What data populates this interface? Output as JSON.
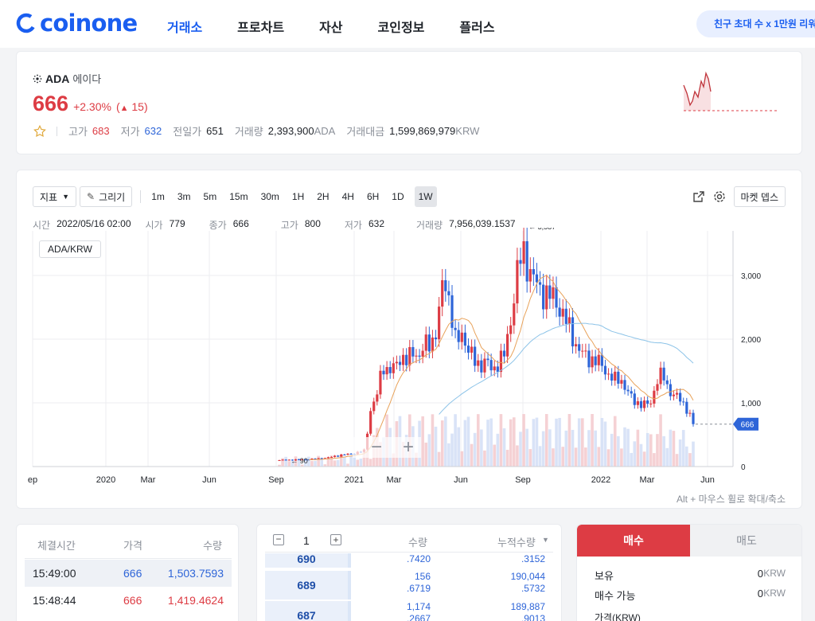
{
  "header": {
    "logo": "coinone",
    "nav": [
      "거래소",
      "프로차트",
      "자산",
      "코인정보",
      "플러스"
    ],
    "promo": "친구 초대 수 x 1만원 리워"
  },
  "ticker": {
    "symbol": "ADA",
    "name_kr": "에이다",
    "price": "666",
    "change_pct": "+2.30%",
    "change_abs": "15",
    "high_label": "고가",
    "high": "683",
    "low_label": "저가",
    "low": "632",
    "prev_label": "전일가",
    "prev": "651",
    "vol_label": "거래량",
    "vol": "2,393,900",
    "vol_unit": "ADA",
    "amt_label": "거래대금",
    "amt": "1,599,869,979",
    "amt_unit": "KRW"
  },
  "chart": {
    "toolbar": {
      "indicator": "지표",
      "draw": "그리기",
      "timeframes": [
        "1m",
        "3m",
        "5m",
        "15m",
        "30m",
        "1H",
        "2H",
        "4H",
        "6H",
        "1D",
        "1W"
      ],
      "selected": "1W",
      "depth": "마켓 뎁스"
    },
    "info": {
      "time_label": "시간",
      "time": "2022/05/16 02:00",
      "open_label": "시가",
      "open": "779",
      "close_label": "종가",
      "close": "666",
      "high_label": "고가",
      "high": "800",
      "low_label": "저가",
      "low": "632",
      "vol_label": "거래량",
      "vol": "7,956,039.1537"
    },
    "pair": "ADA/KRW",
    "hint": "Alt + 마우스 휠로 확대/축소",
    "colors": {
      "up": "#dd3c44",
      "down": "#2e65d8",
      "ma_short": "#e8a25a",
      "ma_long": "#8cc3e8"
    }
  },
  "chart_data": {
    "type": "candlestick",
    "pair": "ADA/KRW",
    "x_ticks": [
      "ep",
      "2020",
      "Mar",
      "Jun",
      "Sep",
      "2021",
      "Mar",
      "Jun",
      "Sep",
      "2022",
      "Mar",
      "Jun"
    ],
    "y_ticks": [
      "0",
      "1,000",
      "2,000",
      "3,000"
    ],
    "ylim": [
      0,
      3700
    ],
    "max_label": "3,587",
    "min_label": "90",
    "last_price": "666",
    "close_path": [
      [
        0,
        100
      ],
      [
        4,
        110
      ],
      [
        6,
        120
      ],
      [
        8,
        140
      ],
      [
        10,
        180
      ],
      [
        12,
        200
      ],
      [
        14,
        250
      ],
      [
        15,
        900
      ],
      [
        16,
        1100
      ],
      [
        17,
        1600
      ],
      [
        18,
        1500
      ],
      [
        19,
        1550
      ],
      [
        20,
        1750
      ],
      [
        21,
        1650
      ],
      [
        22,
        1800
      ],
      [
        23,
        1750
      ],
      [
        24,
        1900
      ],
      [
        25,
        1950
      ],
      [
        26,
        2200
      ],
      [
        27,
        3000
      ],
      [
        28,
        2600
      ],
      [
        29,
        1900
      ],
      [
        30,
        2100
      ],
      [
        31,
        1850
      ],
      [
        32,
        1650
      ],
      [
        33,
        1600
      ],
      [
        34,
        1650
      ],
      [
        35,
        1500
      ],
      [
        36,
        1650
      ],
      [
        37,
        1750
      ],
      [
        38,
        2300
      ],
      [
        39,
        3000
      ],
      [
        40,
        3400
      ],
      [
        41,
        3100
      ],
      [
        42,
        2900
      ],
      [
        43,
        2750
      ],
      [
        44,
        2700
      ],
      [
        45,
        2650
      ],
      [
        46,
        2500
      ],
      [
        47,
        2300
      ],
      [
        48,
        2100
      ],
      [
        49,
        1850
      ],
      [
        50,
        1750
      ],
      [
        51,
        1700
      ],
      [
        52,
        1650
      ],
      [
        53,
        1600
      ],
      [
        54,
        1450
      ],
      [
        55,
        1350
      ],
      [
        56,
        1400
      ],
      [
        57,
        1200
      ],
      [
        58,
        1050
      ],
      [
        59,
        1000
      ],
      [
        60,
        960
      ],
      [
        61,
        1000
      ],
      [
        62,
        1350
      ],
      [
        63,
        1450
      ],
      [
        64,
        1200
      ],
      [
        65,
        1100
      ],
      [
        66,
        1050
      ],
      [
        67,
        900
      ],
      [
        68,
        666
      ]
    ]
  },
  "trades": {
    "headers": [
      "체결시간",
      "가격",
      "수량"
    ],
    "rows": [
      {
        "time": "15:49:00",
        "price": "666",
        "qty": "1,503.7593",
        "side": "down"
      },
      {
        "time": "15:48:44",
        "price": "666",
        "qty": "1,419.4624",
        "side": "up"
      }
    ]
  },
  "orderbook": {
    "step": "1",
    "headers": [
      "수량",
      "누적수량"
    ],
    "rows": [
      {
        "price": "690",
        "qty": ".7420",
        "cum": ".3152"
      },
      {
        "price": "689",
        "qty": "156\n.6719",
        "cum": "190,044\n.5732"
      },
      {
        "price": "687",
        "qty": "1,174\n.2667",
        "cum": "189,887\n.9013"
      }
    ]
  },
  "order": {
    "buy": "매수",
    "sell": "매도",
    "hold_label": "보유",
    "hold": "0",
    "hold_unit": "KRW",
    "avail_label": "매수 가능",
    "avail": "0",
    "avail_unit": "KRW",
    "price_label": "가격(KRW)"
  }
}
